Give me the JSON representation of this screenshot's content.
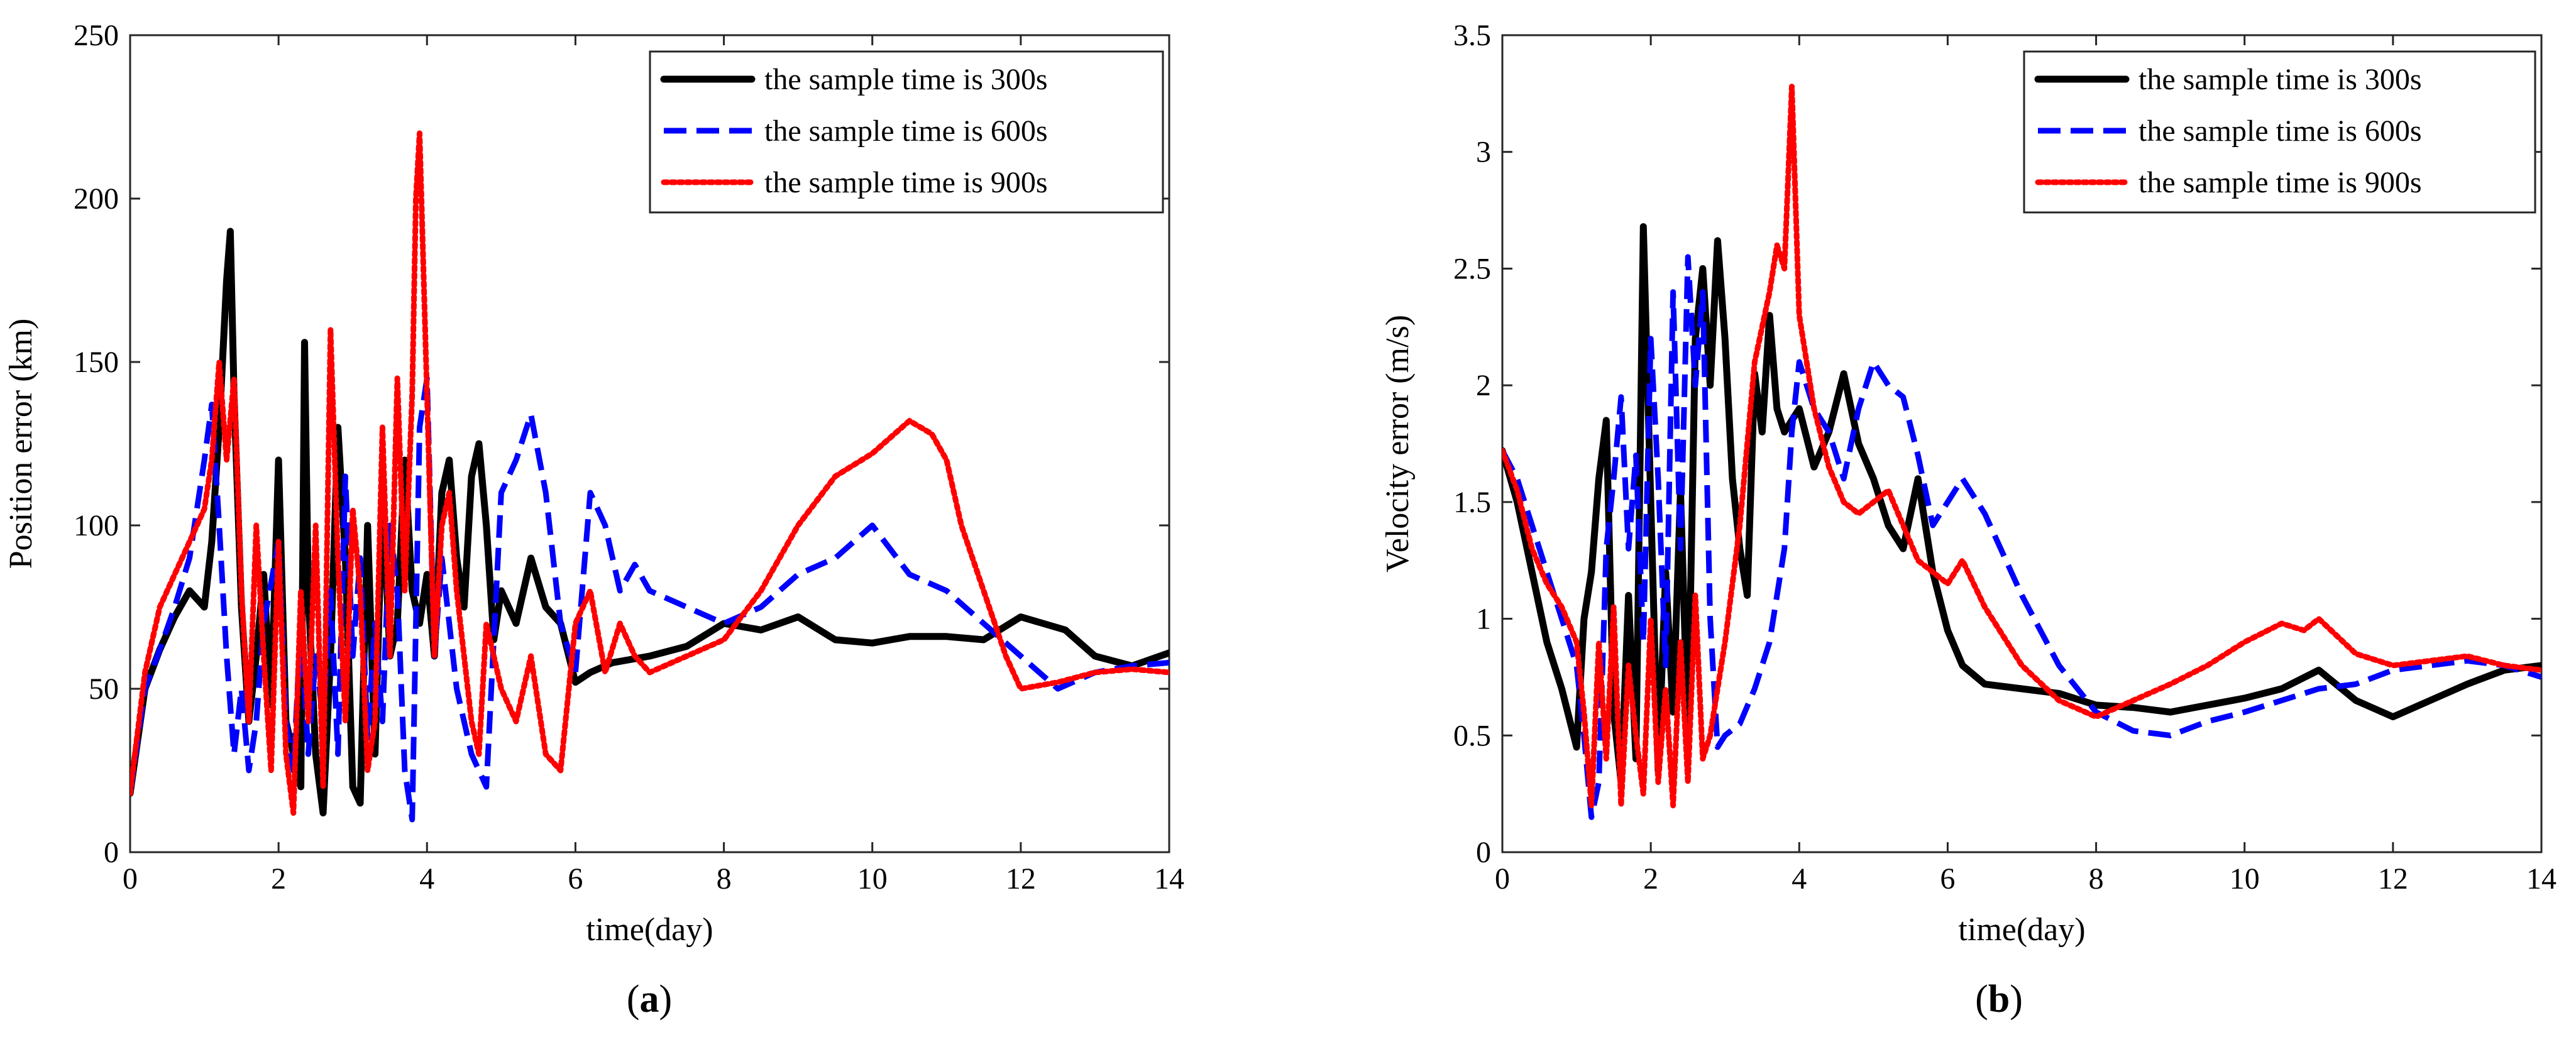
{
  "chart_data": [
    {
      "type": "line",
      "caption_open": "(",
      "caption_letter": "a",
      "caption_close": ")",
      "xlabel": "time(day)",
      "ylabel": "Position error (km)",
      "xlim": [
        0,
        14
      ],
      "ylim": [
        0,
        250
      ],
      "xticks": [
        0,
        2,
        4,
        6,
        8,
        10,
        12,
        14
      ],
      "yticks": [
        0,
        50,
        100,
        150,
        200,
        250
      ],
      "grid": false,
      "legend_position": "top-right",
      "series": [
        {
          "name": "the sample time is 300s",
          "color": "#000000",
          "style": "solid",
          "x": [
            0,
            0.2,
            0.4,
            0.6,
            0.8,
            1.0,
            1.1,
            1.2,
            1.3,
            1.35,
            1.4,
            1.5,
            1.6,
            1.7,
            1.8,
            1.9,
            2.0,
            2.1,
            2.2,
            2.3,
            2.35,
            2.4,
            2.5,
            2.6,
            2.7,
            2.8,
            2.9,
            3.0,
            3.1,
            3.2,
            3.3,
            3.4,
            3.5,
            3.6,
            3.7,
            3.8,
            3.9,
            4.0,
            4.1,
            4.2,
            4.3,
            4.4,
            4.5,
            4.6,
            4.7,
            4.8,
            4.9,
            5.0,
            5.2,
            5.4,
            5.6,
            5.8,
            6.0,
            6.2,
            6.5,
            7.0,
            7.5,
            8.0,
            8.5,
            9.0,
            9.5,
            10.0,
            10.5,
            11.0,
            11.5,
            12.0,
            12.3,
            12.6,
            13.0,
            13.5,
            14.0
          ],
          "values": [
            18,
            50,
            62,
            72,
            80,
            75,
            95,
            130,
            175,
            190,
            140,
            75,
            40,
            60,
            85,
            45,
            120,
            40,
            30,
            20,
            156,
            80,
            30,
            12,
            60,
            130,
            90,
            20,
            15,
            100,
            30,
            110,
            60,
            70,
            120,
            80,
            70,
            85,
            60,
            110,
            120,
            90,
            75,
            115,
            125,
            100,
            65,
            80,
            70,
            90,
            75,
            70,
            52,
            55,
            58,
            60,
            63,
            70,
            68,
            72,
            65,
            64,
            66,
            66,
            65,
            72,
            70,
            68,
            60,
            57,
            61
          ]
        },
        {
          "name": "the sample time is 600s",
          "color": "#0000ff",
          "style": "dashed",
          "x": [
            0,
            0.2,
            0.4,
            0.6,
            0.8,
            1.0,
            1.1,
            1.2,
            1.3,
            1.4,
            1.5,
            1.6,
            1.7,
            1.8,
            2.0,
            2.1,
            2.2,
            2.3,
            2.4,
            2.5,
            2.6,
            2.7,
            2.8,
            2.9,
            3.0,
            3.1,
            3.2,
            3.3,
            3.4,
            3.5,
            3.6,
            3.7,
            3.8,
            3.9,
            4.0,
            4.1,
            4.2,
            4.4,
            4.6,
            4.8,
            5.0,
            5.2,
            5.4,
            5.6,
            5.8,
            6.0,
            6.2,
            6.4,
            6.6,
            6.8,
            7.0,
            7.5,
            8.0,
            8.5,
            9.0,
            9.5,
            10.0,
            10.5,
            11.0,
            11.5,
            12.0,
            12.5,
            13.0,
            13.5,
            14.0
          ],
          "values": [
            18,
            50,
            62,
            75,
            90,
            120,
            137,
            100,
            60,
            30,
            50,
            25,
            40,
            70,
            95,
            40,
            25,
            70,
            30,
            60,
            40,
            80,
            30,
            115,
            60,
            90,
            35,
            70,
            40,
            100,
            80,
            25,
            10,
            130,
            145,
            60,
            90,
            50,
            30,
            20,
            110,
            120,
            134,
            110,
            70,
            55,
            110,
            100,
            80,
            88,
            80,
            75,
            70,
            75,
            85,
            90,
            100,
            85,
            80,
            70,
            60,
            50,
            55,
            57,
            58
          ]
        },
        {
          "name": "the sample time is 900s",
          "color": "#ff0000",
          "style": "dotted",
          "x": [
            0,
            0.2,
            0.4,
            0.6,
            0.8,
            1.0,
            1.1,
            1.2,
            1.3,
            1.4,
            1.5,
            1.6,
            1.7,
            1.8,
            1.9,
            2.0,
            2.1,
            2.2,
            2.3,
            2.4,
            2.5,
            2.6,
            2.7,
            2.8,
            2.9,
            3.0,
            3.1,
            3.2,
            3.3,
            3.4,
            3.5,
            3.6,
            3.7,
            3.8,
            3.85,
            3.9,
            4.0,
            4.1,
            4.2,
            4.3,
            4.4,
            4.5,
            4.6,
            4.7,
            4.8,
            5.0,
            5.2,
            5.4,
            5.6,
            5.8,
            6.0,
            6.2,
            6.4,
            6.6,
            6.8,
            7.0,
            7.5,
            8.0,
            8.5,
            9.0,
            9.5,
            10.0,
            10.3,
            10.5,
            10.8,
            11.0,
            11.2,
            11.5,
            11.8,
            12.0,
            12.5,
            13.0,
            13.5,
            14.0
          ],
          "values": [
            18,
            55,
            75,
            85,
            95,
            105,
            120,
            150,
            120,
            145,
            80,
            40,
            100,
            60,
            25,
            95,
            30,
            12,
            80,
            40,
            100,
            20,
            160,
            90,
            40,
            105,
            80,
            25,
            40,
            130,
            60,
            145,
            80,
            140,
            200,
            220,
            140,
            60,
            100,
            110,
            80,
            60,
            40,
            30,
            70,
            50,
            40,
            60,
            30,
            25,
            70,
            80,
            55,
            70,
            60,
            55,
            60,
            65,
            80,
            100,
            115,
            122,
            128,
            132,
            128,
            120,
            100,
            80,
            60,
            50,
            52,
            55,
            56,
            55
          ]
        }
      ]
    },
    {
      "type": "line",
      "caption_open": "(",
      "caption_letter": "b",
      "caption_close": ")",
      "xlabel": "time(day)",
      "ylabel": "Velocity error (m/s)",
      "xlim": [
        0,
        14
      ],
      "ylim": [
        0,
        3.5
      ],
      "xticks": [
        0,
        2,
        4,
        6,
        8,
        10,
        12,
        14
      ],
      "yticks": [
        0,
        0.5,
        1,
        1.5,
        2,
        2.5,
        3,
        3.5
      ],
      "grid": false,
      "legend_position": "top-right",
      "series": [
        {
          "name": "the sample time is 300s",
          "color": "#000000",
          "style": "solid",
          "x": [
            0,
            0.2,
            0.4,
            0.6,
            0.8,
            1.0,
            1.1,
            1.2,
            1.3,
            1.4,
            1.5,
            1.6,
            1.7,
            1.8,
            1.9,
            2.0,
            2.1,
            2.2,
            2.3,
            2.4,
            2.5,
            2.6,
            2.7,
            2.8,
            2.9,
            3.0,
            3.1,
            3.2,
            3.3,
            3.4,
            3.5,
            3.6,
            3.7,
            3.8,
            4.0,
            4.2,
            4.4,
            4.6,
            4.8,
            5.0,
            5.2,
            5.4,
            5.6,
            5.8,
            6.0,
            6.2,
            6.5,
            7.0,
            7.5,
            8.0,
            8.5,
            9.0,
            9.5,
            10.0,
            10.5,
            11.0,
            11.5,
            12.0,
            12.5,
            13.0,
            13.5,
            14.0
          ],
          "values": [
            1.72,
            1.5,
            1.2,
            0.9,
            0.7,
            0.45,
            1.0,
            1.2,
            1.6,
            1.85,
            0.6,
            0.3,
            1.1,
            0.4,
            2.68,
            1.5,
            0.35,
            1.2,
            0.6,
            1.55,
            0.5,
            2.2,
            2.5,
            2.0,
            2.62,
            2.2,
            1.6,
            1.3,
            1.1,
            2.05,
            1.8,
            2.3,
            1.9,
            1.8,
            1.9,
            1.65,
            1.8,
            2.05,
            1.75,
            1.6,
            1.4,
            1.3,
            1.6,
            1.2,
            0.95,
            0.8,
            0.72,
            0.7,
            0.68,
            0.63,
            0.62,
            0.6,
            0.63,
            0.66,
            0.7,
            0.78,
            0.65,
            0.58,
            0.65,
            0.72,
            0.78,
            0.8
          ]
        },
        {
          "name": "the sample time is 600s",
          "color": "#0000ff",
          "style": "dashed",
          "x": [
            0,
            0.2,
            0.4,
            0.6,
            0.8,
            1.0,
            1.1,
            1.2,
            1.3,
            1.4,
            1.5,
            1.6,
            1.7,
            1.8,
            1.9,
            2.0,
            2.1,
            2.2,
            2.3,
            2.4,
            2.5,
            2.6,
            2.7,
            2.8,
            2.9,
            3.0,
            3.2,
            3.4,
            3.6,
            3.8,
            3.9,
            4.0,
            4.2,
            4.4,
            4.6,
            4.8,
            5.0,
            5.2,
            5.4,
            5.6,
            5.8,
            6.0,
            6.2,
            6.5,
            7.0,
            7.5,
            8.0,
            8.5,
            9.0,
            9.5,
            10.0,
            10.5,
            11.0,
            11.5,
            12.0,
            12.5,
            13.0,
            13.5,
            14.0
          ],
          "values": [
            1.72,
            1.6,
            1.4,
            1.2,
            1.0,
            0.8,
            0.5,
            0.15,
            0.3,
            1.3,
            1.6,
            1.95,
            1.3,
            1.7,
            0.9,
            2.2,
            1.6,
            0.8,
            2.4,
            1.3,
            2.55,
            2.0,
            2.4,
            1.0,
            0.45,
            0.5,
            0.55,
            0.7,
            0.9,
            1.3,
            1.8,
            2.1,
            1.9,
            1.8,
            1.6,
            1.9,
            2.1,
            2.0,
            1.95,
            1.7,
            1.4,
            1.5,
            1.6,
            1.45,
            1.1,
            0.8,
            0.6,
            0.52,
            0.5,
            0.56,
            0.6,
            0.65,
            0.7,
            0.72,
            0.78,
            0.8,
            0.82,
            0.8,
            0.75
          ]
        },
        {
          "name": "the sample time is 900s",
          "color": "#ff0000",
          "style": "dotted",
          "x": [
            0,
            0.2,
            0.4,
            0.6,
            0.8,
            1.0,
            1.1,
            1.2,
            1.3,
            1.4,
            1.5,
            1.6,
            1.7,
            1.8,
            1.9,
            2.0,
            2.1,
            2.2,
            2.3,
            2.4,
            2.5,
            2.6,
            2.7,
            2.8,
            2.9,
            3.0,
            3.2,
            3.4,
            3.6,
            3.7,
            3.8,
            3.9,
            4.0,
            4.1,
            4.2,
            4.4,
            4.6,
            4.8,
            5.0,
            5.2,
            5.4,
            5.6,
            5.8,
            6.0,
            6.2,
            6.5,
            7.0,
            7.5,
            8.0,
            8.5,
            9.0,
            9.5,
            10.0,
            10.5,
            10.8,
            11.0,
            11.5,
            12.0,
            12.5,
            13.0,
            13.5,
            14.0
          ],
          "values": [
            1.72,
            1.55,
            1.3,
            1.15,
            1.05,
            0.9,
            0.6,
            0.2,
            0.9,
            0.4,
            1.05,
            0.2,
            0.8,
            0.5,
            0.25,
            1.0,
            0.3,
            0.7,
            0.2,
            0.9,
            0.3,
            1.1,
            0.4,
            0.5,
            0.7,
            0.9,
            1.4,
            2.1,
            2.4,
            2.6,
            2.5,
            3.28,
            2.3,
            2.1,
            1.9,
            1.65,
            1.5,
            1.45,
            1.5,
            1.55,
            1.4,
            1.25,
            1.2,
            1.15,
            1.25,
            1.05,
            0.8,
            0.65,
            0.58,
            0.65,
            0.72,
            0.8,
            0.9,
            0.98,
            0.95,
            1.0,
            0.85,
            0.8,
            0.82,
            0.84,
            0.8,
            0.78
          ]
        }
      ]
    }
  ]
}
